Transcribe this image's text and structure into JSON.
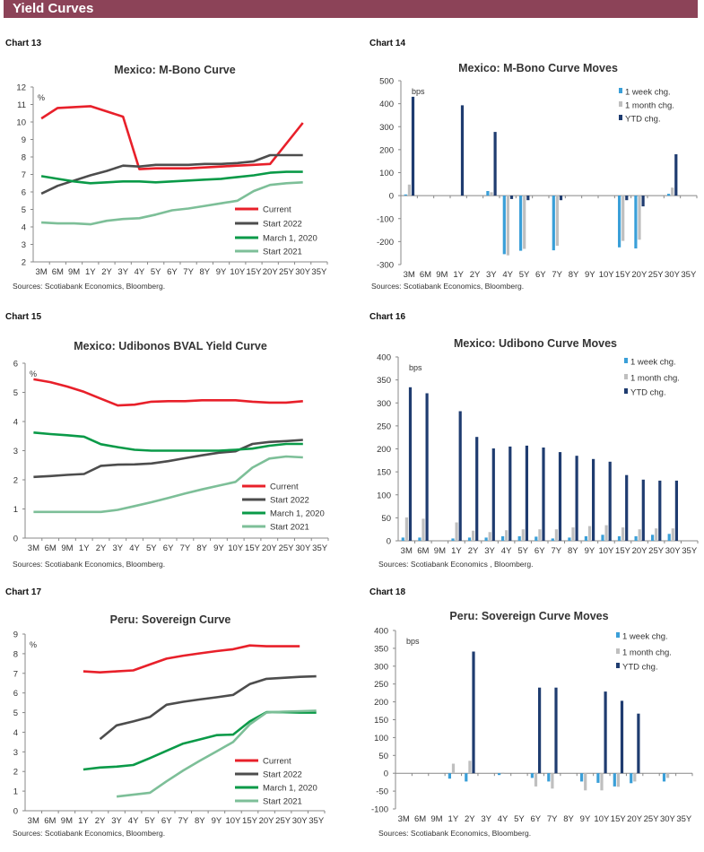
{
  "header": {
    "title": "Yield Curves"
  },
  "chart_labels": [
    "Chart 13",
    "Chart 14",
    "Chart 15",
    "Chart 16",
    "Chart 17",
    "Chart 18"
  ],
  "colors": {
    "header": "#8c4358",
    "Current": "#e8202a",
    "Start 2022": "#4d4d4d",
    "March 1, 2020": "#0a9a48",
    "Start 2021": "#7dbf98",
    "1 week chg.": "#3a9fd8",
    "1 month chg.": "#bfbfbf",
    "YTD chg.": "#1f3c70"
  },
  "chart_data": [
    {
      "type": "line",
      "title": "Mexico: M-Bono Curve",
      "ylabel": "%",
      "ylim": [
        2,
        12
      ],
      "ystep": 1,
      "source": "Sources: Scotiabank Economics, Bloomberg.",
      "legend": "bottom-right",
      "categories": [
        "3M",
        "6M",
        "9M",
        "1Y",
        "2Y",
        "3Y",
        "4Y",
        "5Y",
        "6Y",
        "7Y",
        "8Y",
        "9Y",
        "10Y",
        "15Y",
        "20Y",
        "25Y",
        "30Y",
        "35Y"
      ],
      "series": [
        {
          "name": "Current",
          "values": [
            10.2,
            10.8,
            null,
            10.9,
            null,
            10.3,
            7.3,
            7.35,
            7.35,
            7.35,
            7.4,
            7.45,
            7.5,
            7.55,
            7.6,
            null,
            9.95,
            null
          ]
        },
        {
          "name": "Start 2022",
          "values": [
            5.9,
            6.35,
            6.65,
            6.95,
            7.2,
            7.5,
            7.45,
            7.55,
            7.55,
            7.55,
            7.6,
            7.6,
            7.65,
            7.75,
            8.1,
            8.1,
            8.1,
            null
          ]
        },
        {
          "name": "March 1, 2020",
          "values": [
            6.9,
            6.75,
            6.6,
            6.5,
            6.55,
            6.6,
            6.6,
            6.55,
            6.6,
            6.65,
            6.7,
            6.75,
            6.85,
            6.95,
            7.1,
            7.15,
            7.15,
            null
          ]
        },
        {
          "name": "Start 2021",
          "values": [
            4.25,
            4.2,
            4.2,
            4.15,
            4.35,
            4.45,
            4.5,
            4.7,
            4.95,
            5.05,
            5.2,
            5.35,
            5.5,
            6.05,
            6.4,
            6.5,
            6.55,
            null
          ]
        }
      ]
    },
    {
      "type": "bar",
      "title": "Mexico: M-Bono Curve Moves",
      "ylabel": "bps",
      "ylim": [
        -300,
        500
      ],
      "ystep": 100,
      "source": "Sources: Scotiabank Economics, Bloomberg.",
      "legend": "top-right",
      "categories": [
        "3M",
        "6M",
        "9M",
        "1Y",
        "2Y",
        "3Y",
        "4Y",
        "5Y",
        "6Y",
        "7Y",
        "8Y",
        "9Y",
        "10Y",
        "15Y",
        "20Y",
        "25Y",
        "30Y",
        "35Y"
      ],
      "series": [
        {
          "name": "1 week chg.",
          "values": [
            5,
            null,
            null,
            null,
            null,
            20,
            -255,
            -240,
            null,
            -238,
            null,
            null,
            null,
            -225,
            -230,
            null,
            8,
            null
          ]
        },
        {
          "name": "1 month chg.",
          "values": [
            48,
            null,
            null,
            null,
            null,
            15,
            -260,
            -232,
            null,
            -218,
            null,
            null,
            null,
            -197,
            -192,
            null,
            35,
            null
          ]
        },
        {
          "name": "YTD chg.",
          "values": [
            430,
            null,
            null,
            393,
            null,
            277,
            -15,
            -20,
            null,
            -20,
            null,
            null,
            null,
            -20,
            -47,
            null,
            180,
            null
          ]
        }
      ]
    },
    {
      "type": "line",
      "title": "Mexico: Udibonos  BVAL Yield Curve",
      "ylabel": "%",
      "ylim": [
        0,
        6
      ],
      "ystep": 1,
      "source": "Sources: Scotiabank Economics, Bloomberg.",
      "legend": "bottom-right",
      "categories": [
        "3M",
        "6M",
        "9M",
        "1Y",
        "2Y",
        "3Y",
        "4Y",
        "5Y",
        "6Y",
        "7Y",
        "8Y",
        "9Y",
        "10Y",
        "15Y",
        "20Y",
        "25Y",
        "30Y",
        "35Y"
      ],
      "series": [
        {
          "name": "Current",
          "values": [
            5.45,
            5.35,
            5.2,
            5.02,
            4.78,
            4.55,
            4.58,
            4.68,
            4.7,
            4.7,
            4.73,
            4.73,
            4.73,
            4.68,
            4.65,
            4.65,
            4.7,
            null
          ]
        },
        {
          "name": "Start 2022",
          "values": [
            2.1,
            2.13,
            2.17,
            2.2,
            2.48,
            2.52,
            2.53,
            2.56,
            2.64,
            2.74,
            2.84,
            2.93,
            2.98,
            3.23,
            3.3,
            3.33,
            3.37,
            null
          ]
        },
        {
          "name": "March 1, 2020",
          "values": [
            3.62,
            3.57,
            3.53,
            3.48,
            3.22,
            3.12,
            3.03,
            3.0,
            3.0,
            3.0,
            3.0,
            3.0,
            3.03,
            3.07,
            3.17,
            3.23,
            3.23,
            null
          ]
        },
        {
          "name": "Start 2021",
          "values": [
            0.9,
            0.9,
            0.9,
            0.9,
            0.9,
            0.97,
            1.1,
            1.23,
            1.38,
            1.53,
            1.67,
            1.8,
            1.93,
            2.42,
            2.73,
            2.8,
            2.77,
            null
          ]
        }
      ]
    },
    {
      "type": "bar",
      "title": "Mexico: Udibono Curve Moves",
      "ylabel": "bps",
      "ylim": [
        0,
        400
      ],
      "ystep": 50,
      "source": "Sources: Scotiabank Economics , Bloomberg.",
      "legend": "top-right",
      "categories": [
        "3M",
        "6M",
        "9M",
        "1Y",
        "2Y",
        "3Y",
        "4Y",
        "5Y",
        "6Y",
        "7Y",
        "8Y",
        "9Y",
        "10Y",
        "15Y",
        "20Y",
        "25Y",
        "30Y",
        "35Y"
      ],
      "series": [
        {
          "name": "1 week chg.",
          "values": [
            7,
            7,
            null,
            5,
            7,
            7,
            10,
            10,
            9,
            5,
            7,
            10,
            13,
            10,
            10,
            13,
            15,
            null
          ]
        },
        {
          "name": "1 month chg.",
          "values": [
            51,
            48,
            null,
            40,
            22,
            19,
            23,
            25,
            25,
            25,
            29,
            32,
            34,
            29,
            25,
            27,
            27,
            null
          ]
        },
        {
          "name": "YTD chg.",
          "values": [
            334,
            321,
            null,
            282,
            226,
            201,
            205,
            207,
            203,
            193,
            185,
            178,
            172,
            143,
            133,
            131,
            131,
            null
          ]
        }
      ]
    },
    {
      "type": "line",
      "title": "Peru: Sovereign Curve",
      "ylabel": "%",
      "ylim": [
        0,
        9
      ],
      "ystep": 1,
      "source": "Sources: Scotiabank Economics, Bloomberg.",
      "legend": "bottom-right",
      "categories": [
        "3M",
        "6M",
        "9M",
        "1Y",
        "2Y",
        "3Y",
        "4Y",
        "5Y",
        "6Y",
        "7Y",
        "8Y",
        "9Y",
        "10Y",
        "15Y",
        "20Y",
        "25Y",
        "30Y",
        "35Y"
      ],
      "series": [
        {
          "name": "Current",
          "values": [
            null,
            null,
            null,
            7.1,
            7.05,
            7.1,
            7.15,
            7.45,
            7.75,
            7.9,
            8.02,
            8.13,
            8.23,
            8.42,
            8.38,
            8.38,
            8.38,
            null
          ]
        },
        {
          "name": "Start 2022",
          "values": [
            null,
            null,
            null,
            null,
            3.65,
            4.35,
            4.55,
            4.78,
            5.4,
            5.55,
            5.67,
            5.78,
            5.9,
            6.45,
            6.72,
            6.77,
            6.82,
            6.85
          ]
        },
        {
          "name": "March 1, 2020",
          "values": [
            null,
            null,
            null,
            2.1,
            2.2,
            2.25,
            2.33,
            2.68,
            3.05,
            3.42,
            3.63,
            3.85,
            3.88,
            4.55,
            5.02,
            5.02,
            5.0,
            5.0
          ]
        },
        {
          "name": "Start 2021",
          "values": [
            null,
            null,
            null,
            null,
            null,
            0.72,
            0.82,
            0.92,
            1.5,
            2.05,
            2.55,
            3.02,
            3.5,
            4.4,
            5.0,
            5.05,
            5.07,
            5.1
          ]
        }
      ]
    },
    {
      "type": "bar",
      "title": "Peru: Sovereign Curve Moves",
      "ylabel": "bps",
      "ylim": [
        -100,
        400
      ],
      "ystep": 50,
      "source": "Sources: Scotiabank Economics, Bloomberg.",
      "legend": "top-right",
      "categories": [
        "3M",
        "6M",
        "9M",
        "1Y",
        "2Y",
        "3Y",
        "4Y",
        "5Y",
        "6Y",
        "7Y",
        "8Y",
        "9Y",
        "10Y",
        "15Y",
        "20Y",
        "25Y",
        "30Y",
        "35Y"
      ],
      "series": [
        {
          "name": "1 week chg.",
          "values": [
            null,
            null,
            null,
            -15,
            -23,
            null,
            -5,
            null,
            -13,
            -23,
            null,
            -23,
            -27,
            -37,
            -28,
            null,
            -23,
            null
          ]
        },
        {
          "name": "1 month chg.",
          "values": [
            null,
            null,
            null,
            27,
            35,
            null,
            2,
            null,
            -37,
            -43,
            null,
            -48,
            -48,
            -38,
            -23,
            null,
            -13,
            null
          ]
        },
        {
          "name": "YTD chg.",
          "values": [
            null,
            null,
            null,
            null,
            341,
            null,
            null,
            null,
            240,
            240,
            null,
            null,
            229,
            203,
            167,
            null,
            null,
            null
          ]
        }
      ]
    }
  ]
}
